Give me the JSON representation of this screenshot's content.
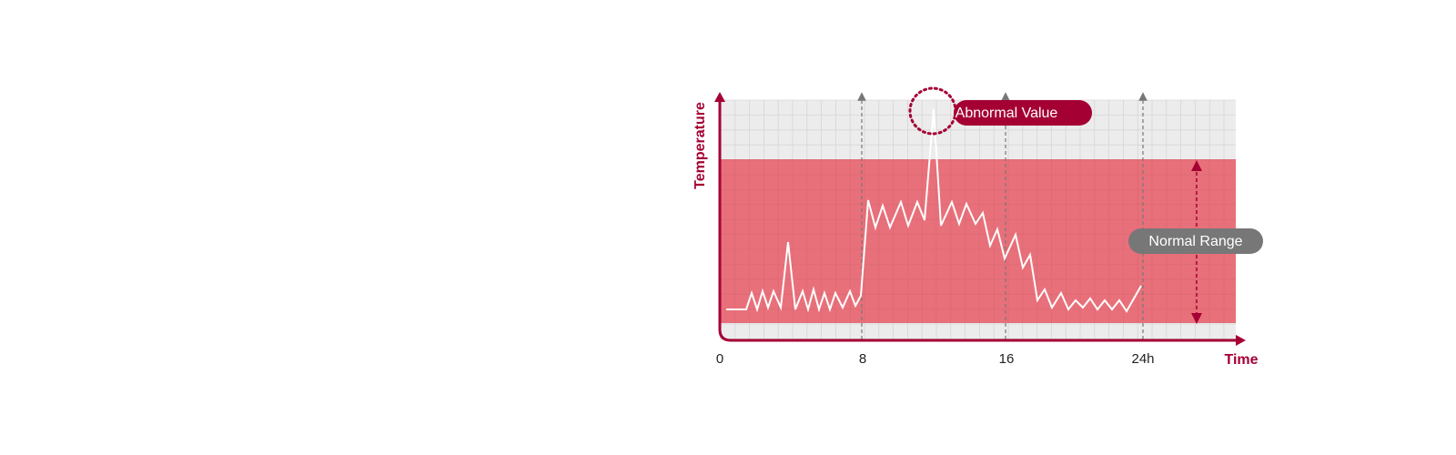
{
  "axis": {
    "y_label": "Temperature",
    "x_label": "Time",
    "x_ticks": [
      "0",
      "8",
      "16",
      "24h"
    ]
  },
  "callouts": {
    "abnormal": "Abnormal Value",
    "normal": "Normal Range"
  }
}
